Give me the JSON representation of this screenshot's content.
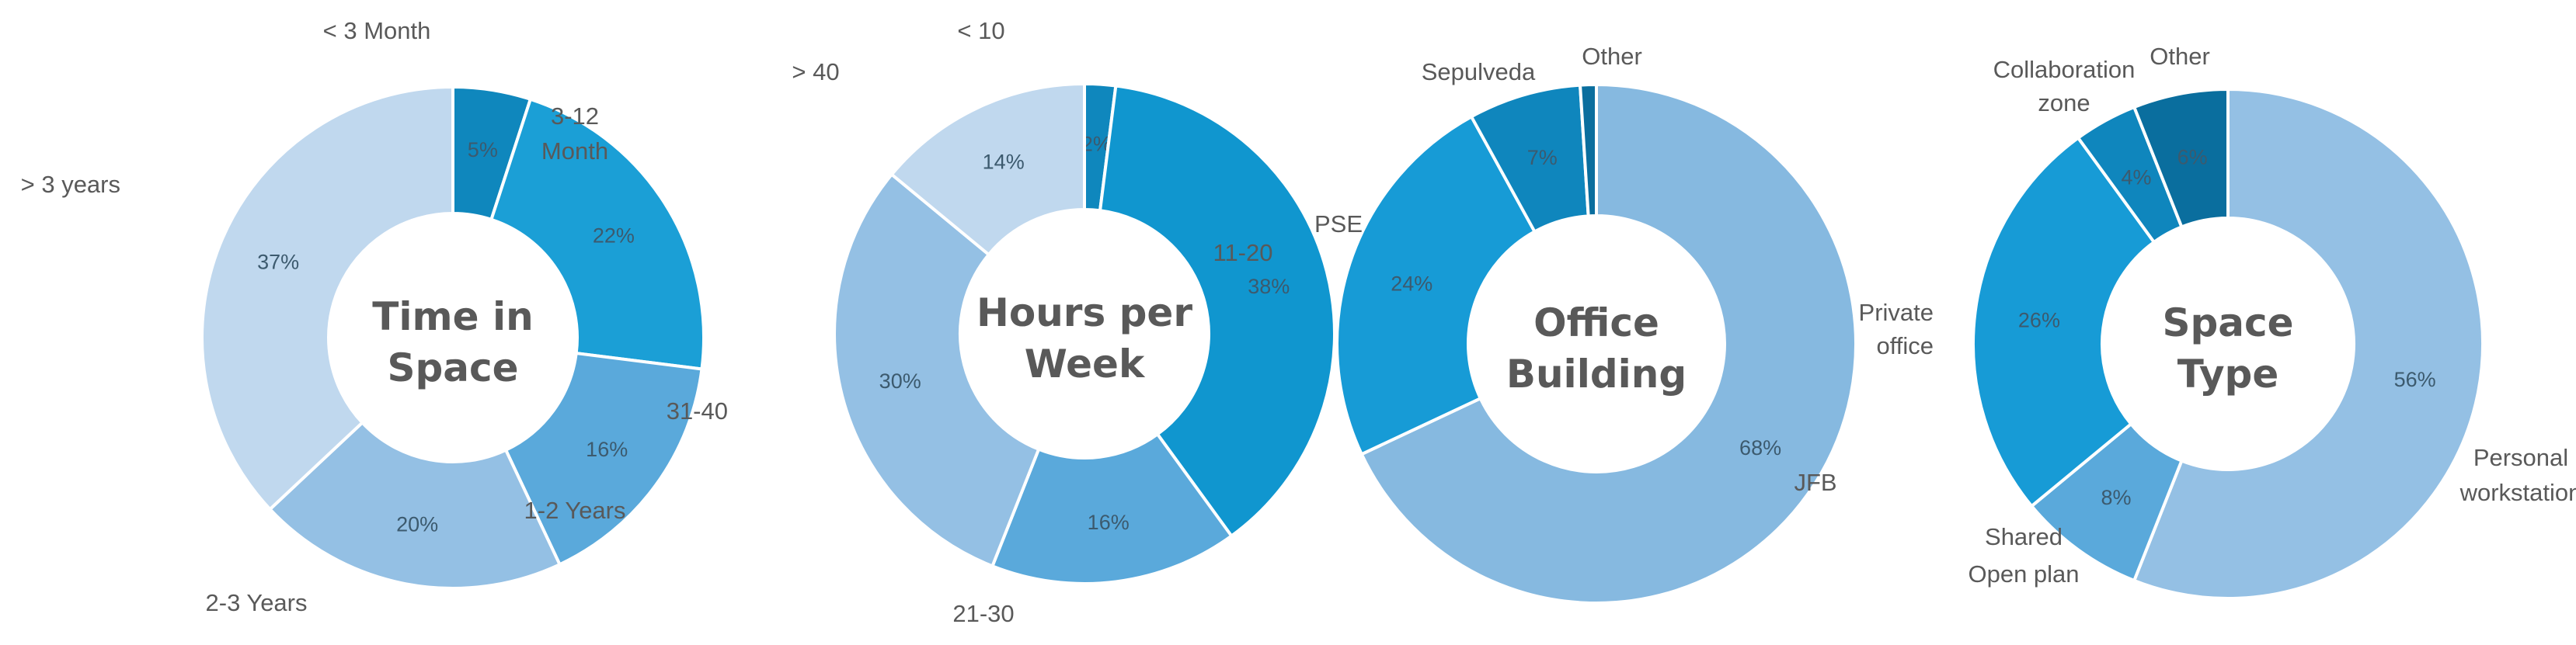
{
  "chart_data": [
    {
      "type": "pie",
      "variant": "donut",
      "center_title": [
        "Time in",
        "Space"
      ],
      "categories": [
        "< 3 Month",
        "3-12 Month",
        "1-2 Years",
        "2-3 Years",
        "> 3 years"
      ],
      "category_label_lines": [
        [
          "< 3 Month"
        ],
        [
          "3-12",
          "Month"
        ],
        [
          "1-2 Years"
        ],
        [
          "2-3 Years"
        ],
        [
          "> 3 years"
        ]
      ],
      "values": [
        5,
        22,
        16,
        20,
        37
      ],
      "value_labels": [
        "5%",
        "22%",
        "16%",
        "20%",
        "37%"
      ],
      "colors": [
        "#0f87bd",
        "#1b9fd6",
        "#5aa9db",
        "#94c0e4",
        "#c0d8ee"
      ]
    },
    {
      "type": "pie",
      "variant": "donut",
      "center_title": [
        "Hours per",
        "Week"
      ],
      "categories": [
        "< 10",
        "11-20",
        "21-30",
        "31-40",
        "> 40"
      ],
      "category_label_lines": [
        [
          "< 10"
        ],
        [
          "11-20"
        ],
        [
          "21-30"
        ],
        [
          "31-40"
        ],
        [
          "> 40"
        ]
      ],
      "values": [
        2,
        38,
        16,
        30,
        14
      ],
      "value_labels": [
        "2%",
        "38%",
        "16%",
        "30%",
        "14%"
      ],
      "colors": [
        "#0f87bd",
        "#1096cf",
        "#5aa9db",
        "#94c0e4",
        "#c0d8ee"
      ]
    },
    {
      "type": "pie",
      "variant": "donut",
      "center_title": [
        "Office",
        "Building"
      ],
      "categories": [
        "JFB",
        "PSE",
        "Sepulveda",
        "Other"
      ],
      "category_label_lines": [
        [
          "JFB"
        ],
        [
          "PSE"
        ],
        [
          "Sepulveda"
        ],
        [
          "Other"
        ]
      ],
      "values": [
        68,
        24,
        7,
        1
      ],
      "value_labels": [
        "68%",
        "24%",
        "7%",
        ""
      ],
      "colors": [
        "#86b9e0",
        "#179bd6",
        "#0f86bd",
        "#0a6e9e"
      ]
    },
    {
      "type": "pie",
      "variant": "donut",
      "center_title": [
        "Space",
        "Type"
      ],
      "categories": [
        "Personal workstation",
        "Shared Open plan",
        "Private office",
        "Collaboration zone",
        "Other"
      ],
      "category_label_lines": [
        [
          "Personal",
          "workstation"
        ],
        [
          "Shared",
          "Open plan"
        ],
        [
          "Private",
          "office"
        ],
        [
          "Collaboration",
          "zone"
        ],
        [
          "Other"
        ]
      ],
      "values": [
        56,
        8,
        26,
        4,
        6
      ],
      "value_labels": [
        "56%",
        "8%",
        "26%",
        "4%",
        "6%"
      ],
      "colors": [
        "#94c0e4",
        "#5aa9db",
        "#179bd6",
        "#0f86bd",
        "#0a6e9e"
      ]
    }
  ]
}
